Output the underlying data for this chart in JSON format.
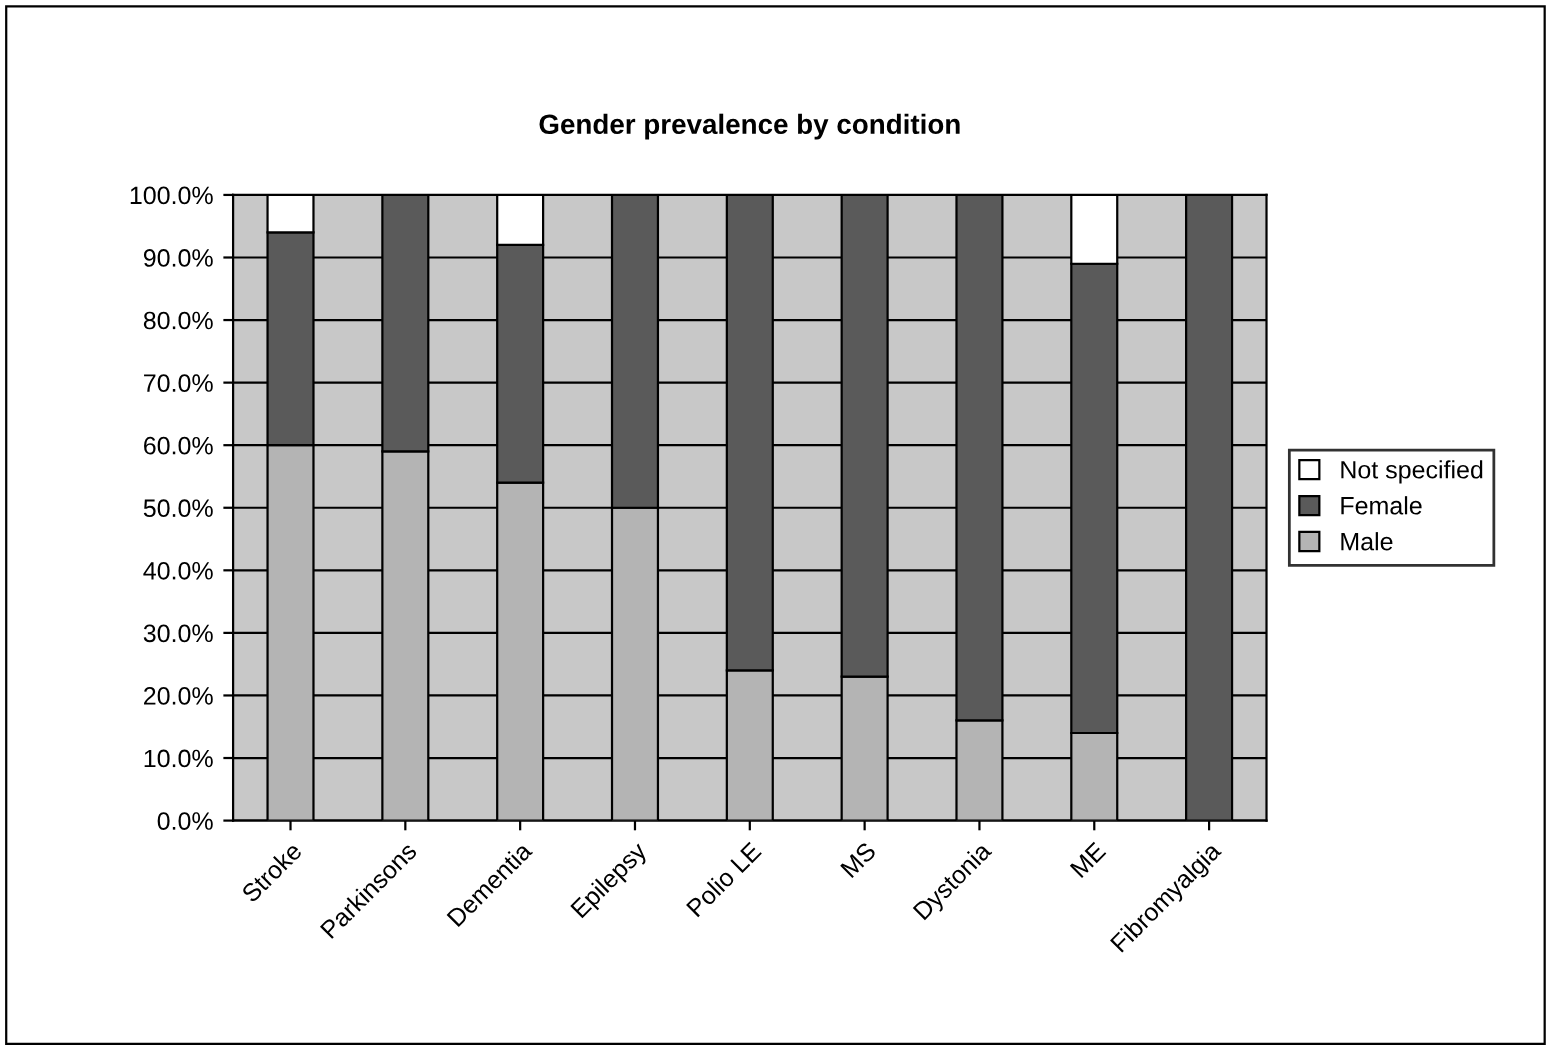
{
  "chart_data": {
    "type": "bar",
    "title": "Gender prevalence by condition",
    "stacked": true,
    "categories": [
      "Stroke",
      "Parkinsons",
      "Dementia",
      "Epilepsy",
      "Polio LE",
      "MS",
      "Dystonia",
      "ME",
      "Fibromyalgia"
    ],
    "series": [
      {
        "name": "Male",
        "color": "#b4b4b4",
        "values": [
          60,
          59,
          54,
          50,
          24,
          23,
          16,
          14,
          0
        ]
      },
      {
        "name": "Female",
        "color": "#5a5a5a",
        "values": [
          34,
          41,
          38,
          50,
          76,
          77,
          84,
          75,
          100
        ]
      },
      {
        "name": "Not specified",
        "color": "#ffffff",
        "values": [
          6,
          0,
          8,
          0,
          0,
          0,
          0,
          11,
          0
        ]
      }
    ],
    "ylim": [
      0,
      100
    ],
    "yticks": [
      {
        "value": 0,
        "label": "0.0%"
      },
      {
        "value": 10,
        "label": "10.0%"
      },
      {
        "value": 20,
        "label": "20.0%"
      },
      {
        "value": 30,
        "label": "30.0%"
      },
      {
        "value": 40,
        "label": "40.0%"
      },
      {
        "value": 50,
        "label": "50.0%"
      },
      {
        "value": 60,
        "label": "60.0%"
      },
      {
        "value": 70,
        "label": "70.0%"
      },
      {
        "value": 80,
        "label": "80.0%"
      },
      {
        "value": 90,
        "label": "90.0%"
      },
      {
        "value": 100,
        "label": "100.0%"
      }
    ],
    "grid": "y",
    "legend": "right"
  }
}
